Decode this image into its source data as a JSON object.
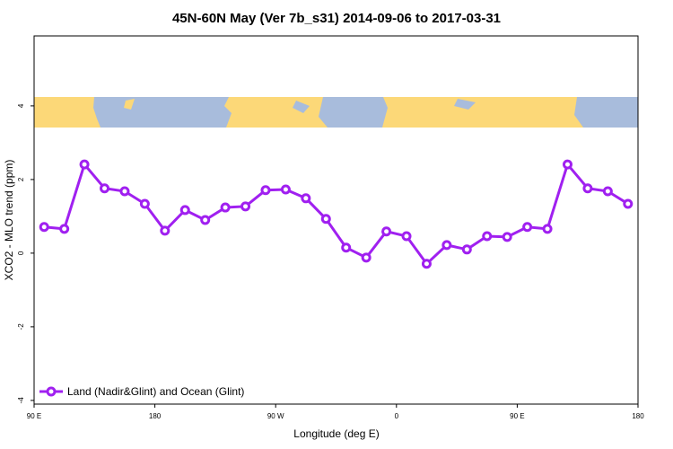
{
  "chart_data": {
    "type": "line",
    "title": "45N-60N May (Ver 7b_s31)   2014-09-06 to 2017-03-31",
    "x_label": "Longitude (deg E)",
    "y_label": "XCO2 - MLO trend (ppm)",
    "x": [
      97.5,
      112.5,
      127.5,
      142.5,
      157.5,
      172.5,
      187.5,
      202.5,
      217.5,
      232.5,
      247.5,
      262.5,
      277.5,
      292.5,
      307.5,
      322.5,
      337.5,
      352.5,
      367.5,
      382.5,
      397.5,
      412.5,
      427.5,
      442.5,
      457.5,
      472.5,
      487.5,
      502.5,
      517.5,
      532.5
    ],
    "series": [
      {
        "name": "Land (Nadir&Glint) and Ocean (Glint)",
        "color": "#a020f0",
        "values": [
          0.71,
          0.66,
          2.41,
          1.76,
          1.68,
          1.34,
          0.61,
          1.17,
          0.9,
          1.24,
          1.27,
          1.71,
          1.73,
          1.49,
          0.93,
          0.15,
          -0.12,
          0.59,
          0.46,
          -0.29,
          0.22,
          0.1,
          0.46,
          0.44,
          0.71,
          0.66,
          2.41,
          1.76,
          1.68,
          1.34
        ]
      }
    ],
    "xlim": [
      90,
      540
    ],
    "ylim": [
      -4.1,
      5.9
    ],
    "xticks": [
      {
        "value": 90,
        "label": "90 E"
      },
      180,
      {
        "value": 270,
        "label": "90 W"
      },
      {
        "value": 360,
        "label": "0"
      },
      {
        "value": 450,
        "label": "90 E"
      },
      {
        "value": 540,
        "label": "180"
      }
    ],
    "yticks": [
      -4,
      -2,
      0,
      2,
      4
    ],
    "legend": "bottom-left"
  }
}
